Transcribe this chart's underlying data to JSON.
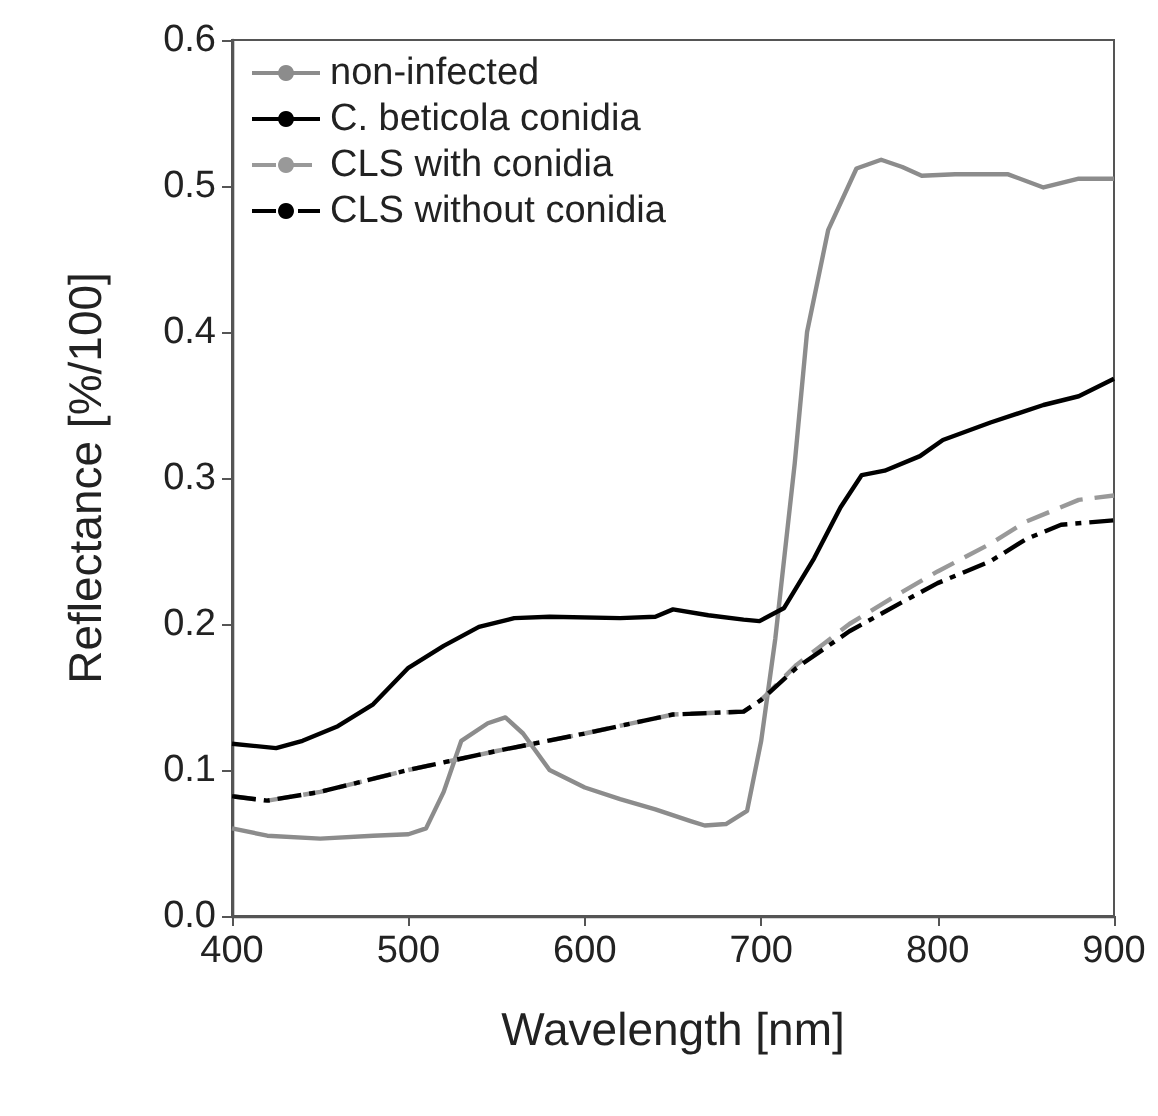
{
  "chart_data": {
    "type": "line",
    "xlabel": "Wavelength [nm]",
    "ylabel": "Reflectance [%/100]",
    "xlim": [
      400,
      900
    ],
    "xticks": [
      400,
      500,
      600,
      700,
      800,
      900
    ],
    "ylim": [
      0,
      0.6
    ],
    "yticks": [
      {
        "value": 0,
        "label": "0.0"
      },
      {
        "value": 0.1,
        "label": "0.1"
      },
      {
        "value": 0.2,
        "label": "0.2"
      },
      {
        "value": 0.3,
        "label": "0.3"
      },
      {
        "value": 0.4,
        "label": "0.4"
      },
      {
        "value": 0.5,
        "label": "0.5"
      },
      {
        "value": 0.6,
        "label": "0.6"
      }
    ],
    "grid": false,
    "legend": "top left",
    "marker": "none",
    "series": [
      {
        "name": "non-infected",
        "color": "#8c8c8c",
        "line_style": "solid",
        "x": [
          400,
          420,
          450,
          480,
          500,
          510,
          520,
          530,
          545,
          555,
          565,
          580,
          600,
          620,
          640,
          660,
          668,
          680,
          692,
          700,
          708,
          719,
          726,
          738,
          754,
          768,
          780,
          791,
          810,
          840,
          860,
          880,
          900
        ],
        "values": [
          0.06,
          0.055,
          0.053,
          0.055,
          0.056,
          0.06,
          0.085,
          0.12,
          0.132,
          0.136,
          0.125,
          0.1,
          0.088,
          0.08,
          0.073,
          0.065,
          0.062,
          0.063,
          0.072,
          0.12,
          0.19,
          0.31,
          0.4,
          0.47,
          0.512,
          0.518,
          0.513,
          0.507,
          0.508,
          0.508,
          0.499,
          0.505,
          0.505
        ]
      },
      {
        "name": "C. beticola conidia",
        "color": "#000000",
        "line_style": "solid",
        "x": [
          400,
          425,
          440,
          460,
          480,
          500,
          520,
          540,
          560,
          580,
          620,
          640,
          650,
          670,
          690,
          699,
          713,
          730,
          745,
          757,
          770,
          790,
          803,
          830,
          860,
          880,
          900
        ],
        "values": [
          0.118,
          0.115,
          0.12,
          0.13,
          0.145,
          0.17,
          0.185,
          0.198,
          0.204,
          0.205,
          0.204,
          0.205,
          0.21,
          0.206,
          0.203,
          0.202,
          0.211,
          0.245,
          0.28,
          0.302,
          0.305,
          0.315,
          0.326,
          0.338,
          0.35,
          0.356,
          0.368
        ]
      },
      {
        "name": "CLS with conidia",
        "color": "#999999",
        "line_style": "dashed",
        "x": [
          400,
          420,
          450,
          500,
          550,
          600,
          650,
          690,
          700,
          720,
          750,
          780,
          800,
          830,
          850,
          880,
          900
        ],
        "values": [
          0.082,
          0.079,
          0.085,
          0.1,
          0.113,
          0.125,
          0.138,
          0.14,
          0.148,
          0.172,
          0.2,
          0.222,
          0.236,
          0.255,
          0.27,
          0.285,
          0.288
        ]
      },
      {
        "name": "CLS without conidia",
        "color": "#000000",
        "line_style": "dashdot",
        "x": [
          400,
          420,
          450,
          500,
          550,
          600,
          650,
          690,
          700,
          720,
          750,
          780,
          800,
          830,
          850,
          870,
          900
        ],
        "values": [
          0.082,
          0.079,
          0.085,
          0.1,
          0.113,
          0.125,
          0.138,
          0.14,
          0.148,
          0.17,
          0.195,
          0.215,
          0.228,
          0.243,
          0.258,
          0.268,
          0.271
        ]
      }
    ]
  }
}
